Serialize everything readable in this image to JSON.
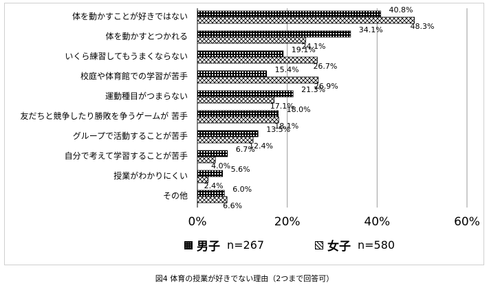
{
  "chart_data": {
    "type": "bar",
    "orientation": "horizontal",
    "categories": [
      "体を動かすことが好きではない",
      "体を動かすとつかれる",
      "いくら練習してもうまくならない",
      "校庭や体育館での学習が苦手",
      "運動種目がつまらない",
      "友だちと競争したり勝敗を争うゲームが 苦手",
      "グループで活動することが苦手",
      "自分で考えて学習することが苦手",
      "授業がわかりにくい",
      "その他"
    ],
    "series": [
      {
        "name": "男子",
        "n_label": "n=267",
        "pattern": "dots",
        "values": [
          40.8,
          34.1,
          19.1,
          15.4,
          21.3,
          18.0,
          13.5,
          6.7,
          5.6,
          6.0
        ],
        "value_labels": [
          "40.8%",
          "34.1%",
          "19.1%",
          "15.4%",
          "21.3%",
          "18.0%",
          "13.5%",
          "6.7%",
          "5.6%",
          "6.0%"
        ]
      },
      {
        "name": "女子",
        "n_label": "n=580",
        "pattern": "crosshatch",
        "values": [
          48.3,
          24.1,
          26.7,
          26.9,
          17.1,
          18.1,
          12.4,
          4.0,
          2.4,
          6.6
        ],
        "value_labels": [
          "48.3%",
          "24.1%",
          "26.7%",
          "26.9%",
          "17.1%",
          "18.1%",
          "12.4%",
          "4.0%",
          "2.4%",
          "6.6%"
        ]
      }
    ],
    "xlim": [
      0,
      60
    ],
    "xticks": [
      0,
      20,
      40,
      60
    ],
    "xtick_labels": [
      "0%",
      "20%",
      "40%",
      "60%"
    ],
    "grid": "vertical",
    "legend_position": "bottom",
    "colors": {
      "bar_fill": "#000000",
      "bar_background": "#ffffff",
      "gridline": "#9a9a9a"
    }
  },
  "caption": "図4  体育の授業が好きでない理由（2つまで回答可）"
}
